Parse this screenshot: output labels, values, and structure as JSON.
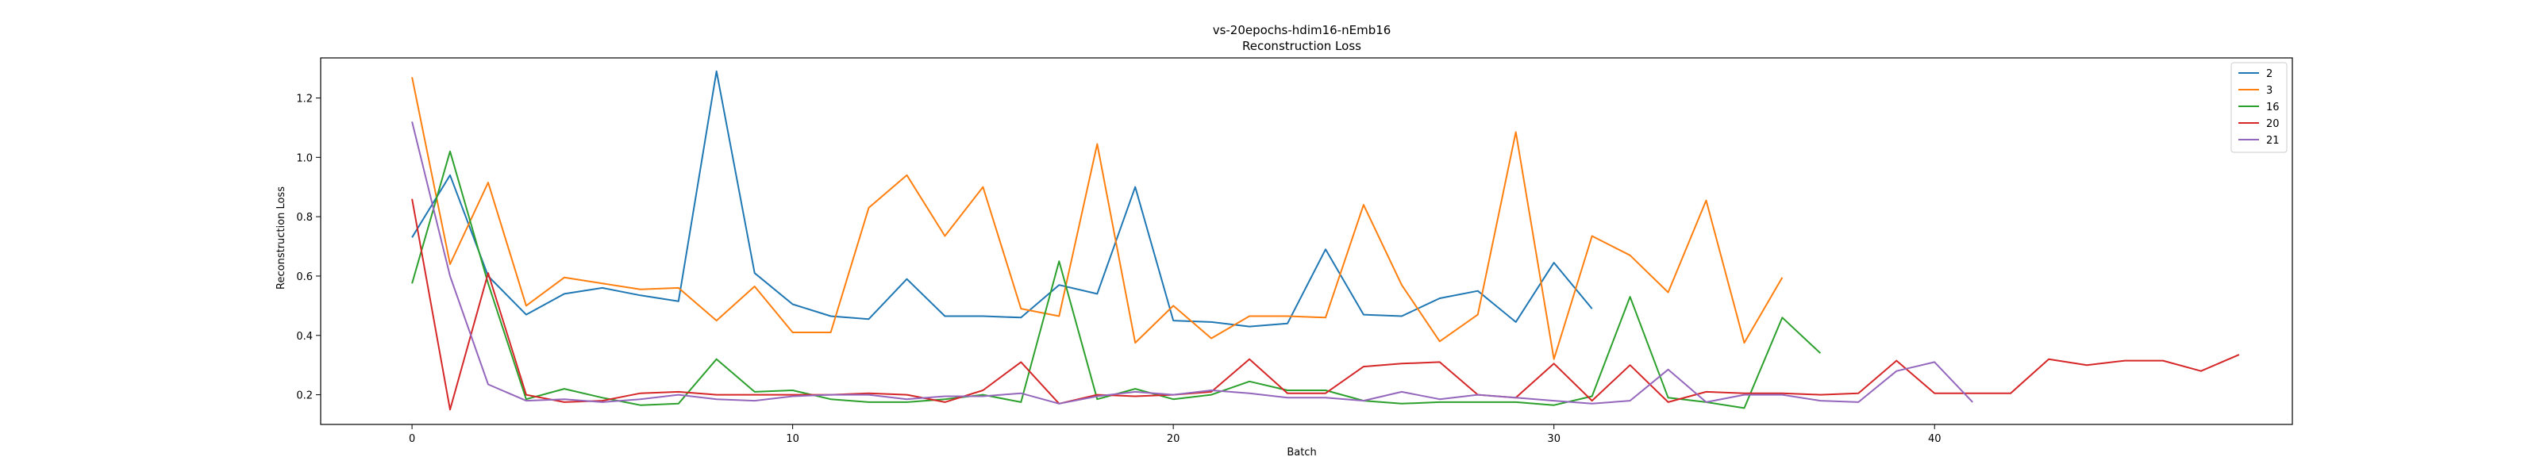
{
  "chart_data": {
    "type": "line",
    "title": "vs-20epochs-hdim16-nEmb16",
    "subtitle": "Reconstruction Loss",
    "xlabel": "Batch",
    "ylabel": "Reconstruction Loss",
    "xlim": [
      -2.4,
      49.4
    ],
    "ylim": [
      0.1,
      1.335
    ],
    "xticks": [
      0,
      10,
      20,
      30,
      40
    ],
    "yticks": [
      0.2,
      0.4,
      0.6,
      0.8,
      1.0,
      1.2
    ],
    "ytick_labels": [
      "0.2",
      "0.4",
      "0.6",
      "0.8",
      "1.0",
      "1.2"
    ],
    "grid": false,
    "legend_position": "top-right",
    "series": [
      {
        "name": "2",
        "color": "#1f77b4",
        "values": [
          0.73,
          0.94,
          0.6,
          0.47,
          0.54,
          0.56,
          0.535,
          0.515,
          1.29,
          0.61,
          0.505,
          0.465,
          0.455,
          0.59,
          0.465,
          0.465,
          0.46,
          0.57,
          0.54,
          0.9,
          0.45,
          0.445,
          0.43,
          0.44,
          0.69,
          0.47,
          0.465,
          0.525,
          0.55,
          0.445,
          0.645,
          0.49
        ]
      },
      {
        "name": "3",
        "color": "#ff7f0e",
        "values": [
          1.27,
          0.64,
          0.915,
          0.5,
          0.595,
          0.575,
          0.555,
          0.56,
          0.45,
          0.565,
          0.41,
          0.41,
          0.83,
          0.94,
          0.735,
          0.9,
          0.49,
          0.465,
          1.045,
          0.375,
          0.5,
          0.39,
          0.465,
          0.465,
          0.46,
          0.84,
          0.57,
          0.38,
          0.47,
          1.085,
          0.32,
          0.735,
          0.67,
          0.545,
          0.855,
          0.375,
          0.595
        ]
      },
      {
        "name": "16",
        "color": "#2ca02c",
        "values": [
          0.575,
          1.02,
          0.575,
          0.185,
          0.22,
          0.19,
          0.165,
          0.17,
          0.32,
          0.21,
          0.215,
          0.185,
          0.175,
          0.175,
          0.185,
          0.2,
          0.175,
          0.65,
          0.185,
          0.22,
          0.185,
          0.2,
          0.245,
          0.215,
          0.215,
          0.18,
          0.17,
          0.175,
          0.175,
          0.175,
          0.165,
          0.195,
          0.53,
          0.19,
          0.175,
          0.155,
          0.46,
          0.34
        ]
      },
      {
        "name": "20",
        "color": "#d62728",
        "values": [
          0.86,
          0.15,
          0.61,
          0.2,
          0.175,
          0.18,
          0.205,
          0.21,
          0.2,
          0.2,
          0.2,
          0.2,
          0.205,
          0.2,
          0.175,
          0.215,
          0.31,
          0.17,
          0.2,
          0.195,
          0.2,
          0.21,
          0.32,
          0.205,
          0.205,
          0.295,
          0.305,
          0.31,
          0.2,
          0.19,
          0.305,
          0.18,
          0.3,
          0.175,
          0.21,
          0.205,
          0.205,
          0.2,
          0.205,
          0.315,
          0.205,
          0.205,
          0.205,
          0.32,
          0.3,
          0.315,
          0.315,
          0.28,
          0.335
        ]
      },
      {
        "name": "21",
        "color": "#9467bd",
        "values": [
          1.12,
          0.6,
          0.235,
          0.18,
          0.185,
          0.175,
          0.185,
          0.2,
          0.185,
          0.18,
          0.195,
          0.2,
          0.2,
          0.185,
          0.195,
          0.195,
          0.205,
          0.17,
          0.195,
          0.21,
          0.2,
          0.215,
          0.205,
          0.19,
          0.19,
          0.18,
          0.21,
          0.185,
          0.2,
          0.19,
          0.18,
          0.17,
          0.18,
          0.285,
          0.175,
          0.2,
          0.2,
          0.18,
          0.175,
          0.28,
          0.31,
          0.175
        ]
      }
    ]
  }
}
